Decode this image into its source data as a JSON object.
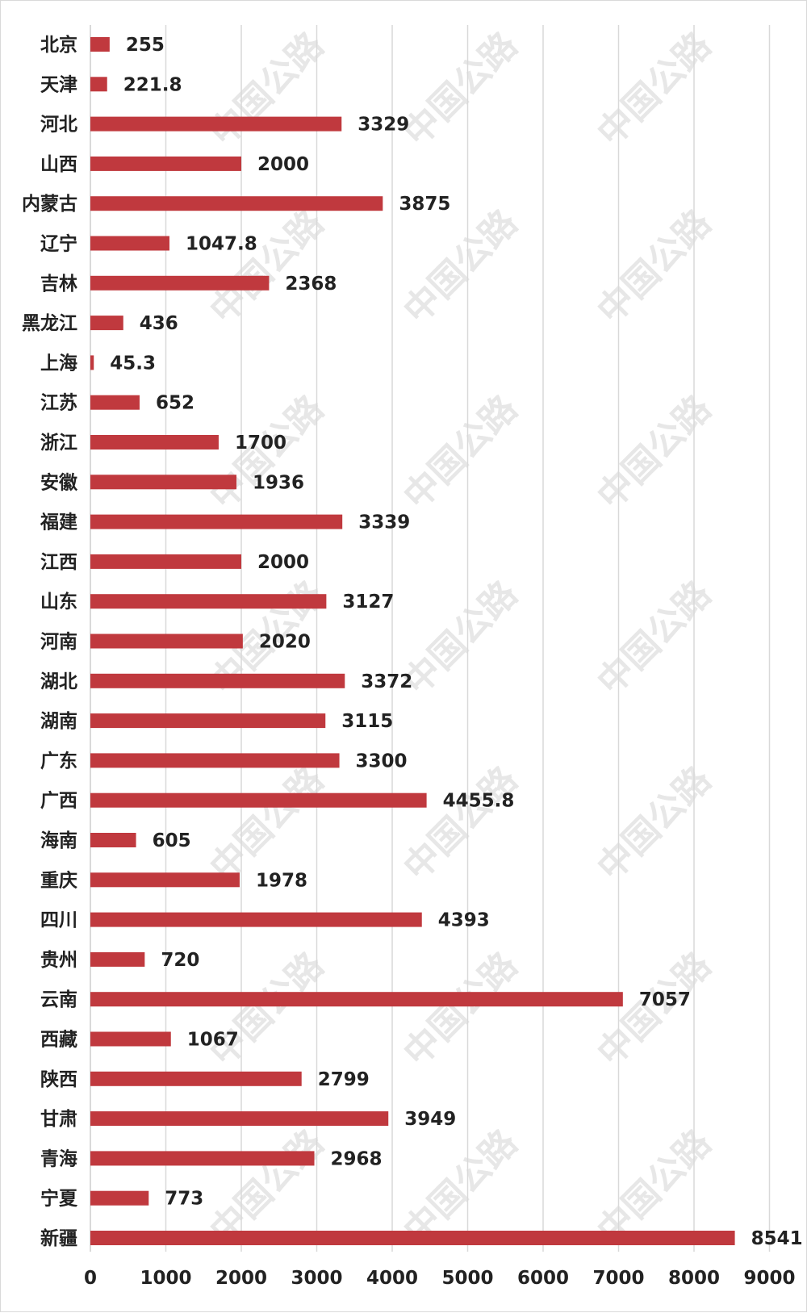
{
  "watermark": "中国公路",
  "chart_data": {
    "type": "bar",
    "orientation": "horizontal",
    "title": "",
    "xlabel": "",
    "ylabel": "",
    "categories": [
      "北京",
      "天津",
      "河北",
      "山西",
      "内蒙古",
      "辽宁",
      "吉林",
      "黑龙江",
      "上海",
      "江苏",
      "浙江",
      "安徽",
      "福建",
      "江西",
      "山东",
      "河南",
      "湖北",
      "湖南",
      "广东",
      "广西",
      "海南",
      "重庆",
      "四川",
      "贵州",
      "云南",
      "西藏",
      "陕西",
      "甘肃",
      "青海",
      "宁夏",
      "新疆"
    ],
    "values": [
      255,
      221.8,
      3329,
      2000,
      3875,
      1047.8,
      2368,
      436,
      45.3,
      652,
      1700,
      1936,
      3339,
      2000,
      3127,
      2020,
      3372,
      3115,
      3300,
      4455.8,
      605,
      1978,
      4393,
      720,
      7057,
      1067,
      2799,
      3949,
      2968,
      773,
      8541
    ],
    "value_labels": [
      "255",
      "221.8",
      "3329",
      "2000",
      "3875",
      "1047.8",
      "2368",
      "436",
      "45.3",
      "652",
      "1700",
      "1936",
      "3339",
      "2000",
      "3127",
      "2020",
      "3372",
      "3115",
      "3300",
      "4455.8",
      "605",
      "1978",
      "4393",
      "720",
      "7057",
      "1067",
      "2799",
      "3949",
      "2968",
      "773",
      "8541"
    ],
    "xlim": [
      0,
      9000
    ],
    "xticks": [
      "0",
      "1000",
      "2000",
      "3000",
      "4000",
      "5000",
      "6000",
      "7000",
      "8000",
      "9000"
    ],
    "grid": "vertical",
    "legend": "none",
    "bar_color": "#c0393e",
    "grid_color": "#d9d9d9"
  }
}
